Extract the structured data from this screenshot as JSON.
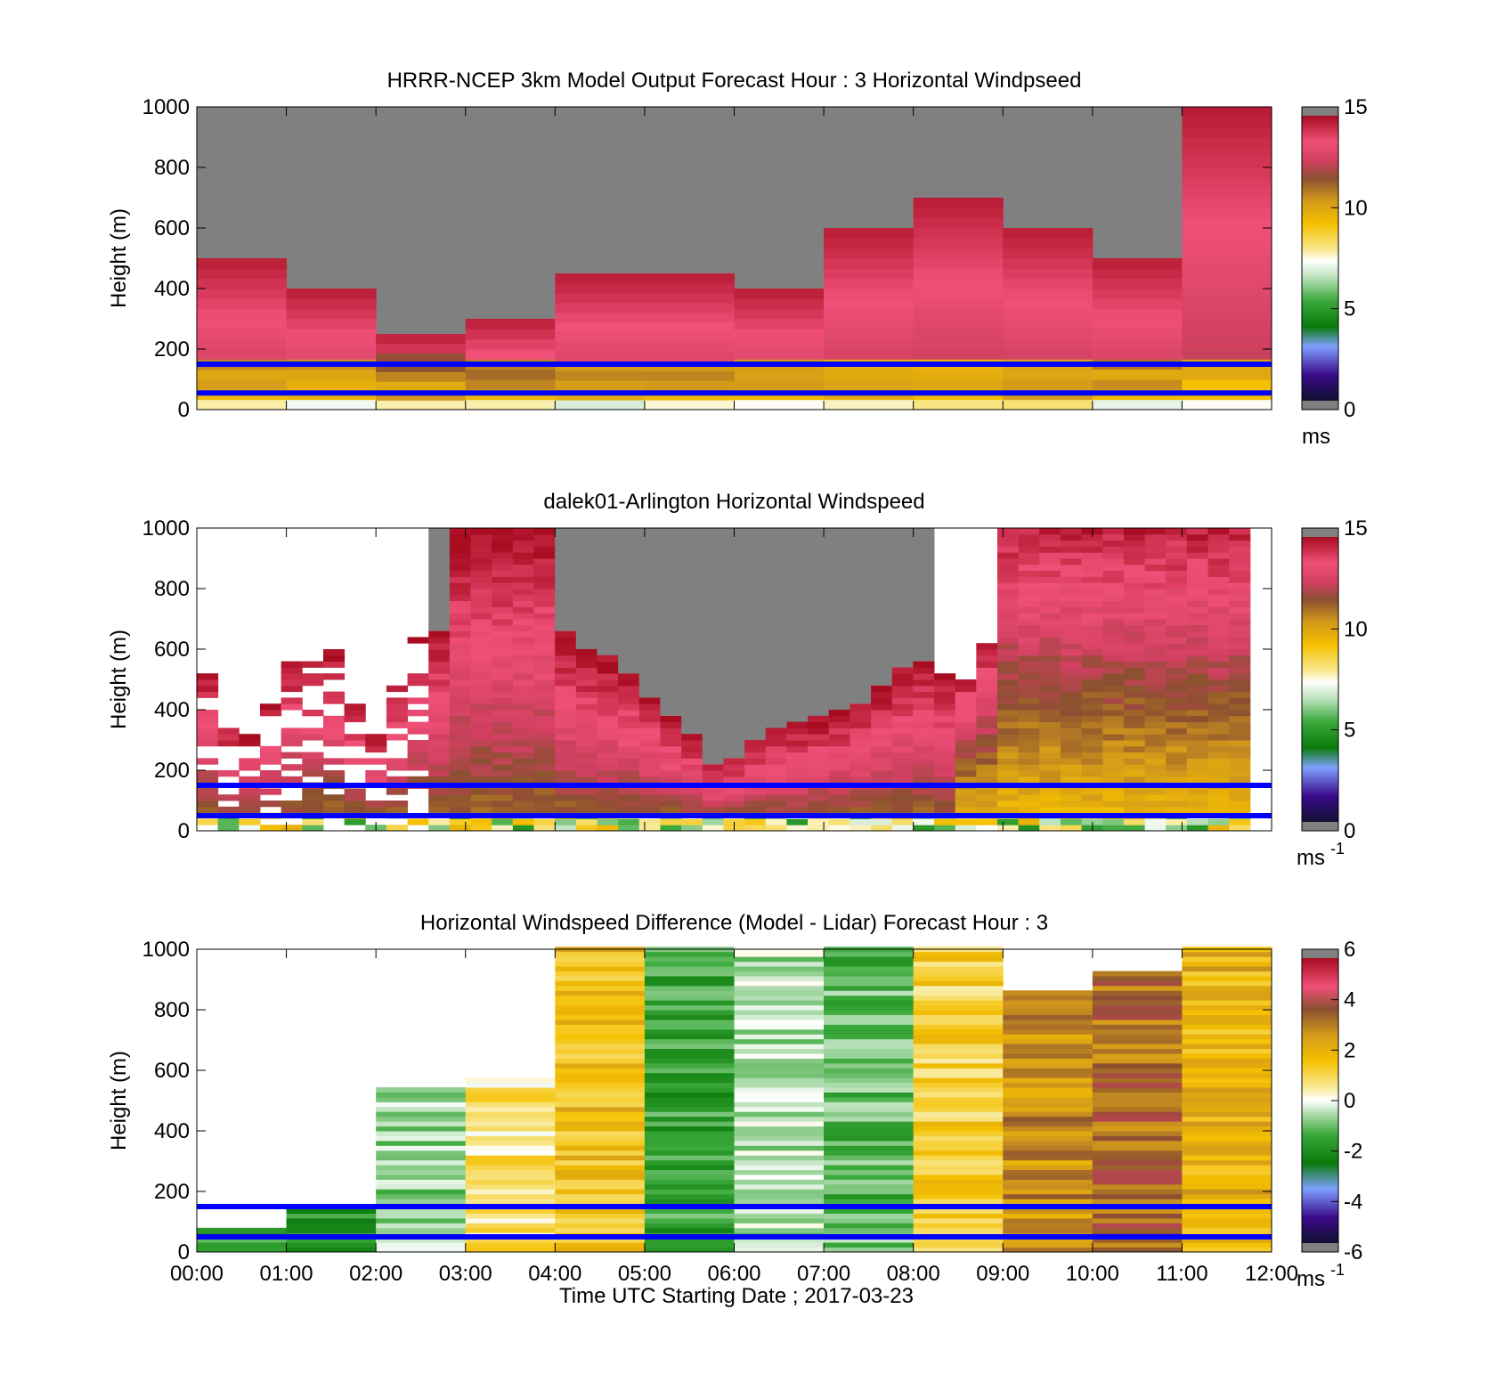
{
  "xlabel": "Time UTC  Starting Date ; 2017-03-23",
  "x_ticks": [
    "00:00",
    "01:00",
    "02:00",
    "03:00",
    "04:00",
    "05:00",
    "06:00",
    "07:00",
    "08:00",
    "09:00",
    "10:00",
    "11:00",
    "12:00"
  ],
  "chart_data": [
    {
      "type": "heatmap",
      "title": "HRRR-NCEP 3km Model Output   Forecast Hour : 3 Horizontal Windpseed",
      "ylabel": "Height (m)",
      "ylim": [
        0,
        1000
      ],
      "y_ticks": [
        "0",
        "200",
        "400",
        "600",
        "800",
        "1000"
      ],
      "x_range_hours": [
        0,
        12
      ],
      "colorbar": {
        "range": [
          0,
          15
        ],
        "ticks": [
          "0",
          "5",
          "10",
          "15"
        ],
        "unit": "ms",
        "unit_sup": ""
      },
      "reference_lines_m": [
        150,
        55
      ],
      "columns": [
        {
          "t0": 0,
          "t1": 1,
          "top_m": 500
        },
        {
          "t0": 1,
          "t1": 2,
          "top_m": 400
        },
        {
          "t0": 2,
          "t1": 3,
          "top_m": 250
        },
        {
          "t0": 3,
          "t1": 4,
          "top_m": 300
        },
        {
          "t0": 4,
          "t1": 5,
          "top_m": 450
        },
        {
          "t0": 5,
          "t1": 6,
          "top_m": 450
        },
        {
          "t0": 6,
          "t1": 7,
          "top_m": 400
        },
        {
          "t0": 7,
          "t1": 8,
          "top_m": 600
        },
        {
          "t0": 8,
          "t1": 9,
          "top_m": 700
        },
        {
          "t0": 9,
          "t1": 10,
          "top_m": 600
        },
        {
          "t0": 10,
          "t1": 11,
          "top_m": 500
        },
        {
          "t0": 11,
          "t1": 12,
          "top_m": 1000
        }
      ]
    },
    {
      "type": "heatmap",
      "title": "dalek01-Arlington  Horizontal Windspeed",
      "ylabel": "Height (m)",
      "ylim": [
        0,
        1000
      ],
      "y_ticks": [
        "0",
        "200",
        "400",
        "600",
        "800",
        "1000"
      ],
      "x_range_hours": [
        0,
        12
      ],
      "colorbar": {
        "range": [
          0,
          15
        ],
        "ticks": [
          "0",
          "5",
          "10",
          "15"
        ],
        "unit": "ms",
        "unit_sup": "-1"
      },
      "reference_lines_m": [
        150,
        50
      ],
      "data_top_m": [
        540,
        350,
        320,
        420,
        560,
        560,
        600,
        420,
        320,
        520,
        630,
        660,
        990,
        1000,
        1000,
        1000,
        1000,
        660,
        590,
        570,
        520,
        440,
        380,
        310,
        220,
        240,
        300,
        330,
        350,
        370,
        390,
        420,
        480,
        540,
        560,
        520,
        500,
        610,
        1000,
        1000,
        1000,
        1000,
        1000,
        1000,
        1000,
        1000,
        1000,
        1000,
        1000,
        1000
      ]
    },
    {
      "type": "heatmap",
      "title": "Horizontal Windspeed Difference (Model - Lidar) Forecast Hour : 3",
      "ylabel": "Height (m)",
      "ylim": [
        0,
        1000
      ],
      "y_ticks": [
        "0",
        "200",
        "400",
        "600",
        "800",
        "1000"
      ],
      "x_range_hours": [
        0,
        12
      ],
      "colorbar": {
        "range": [
          -6,
          6
        ],
        "ticks": [
          "-6",
          "-4",
          "-2",
          "0",
          "2",
          "4",
          "6"
        ],
        "unit": "ms",
        "unit_sup": "-1"
      },
      "reference_lines_m": [
        150,
        50
      ],
      "columns": [
        {
          "t0": 0,
          "t1": 1,
          "top_m": 80,
          "base_diff": -2.0
        },
        {
          "t0": 1,
          "t1": 2,
          "top_m": 150,
          "base_diff": -2.2
        },
        {
          "t0": 2,
          "t1": 3,
          "top_m": 550,
          "base_diff": -1.0
        },
        {
          "t0": 3,
          "t1": 4,
          "top_m": 570,
          "base_diff": 0.5
        },
        {
          "t0": 4,
          "t1": 5,
          "top_m": 1000,
          "base_diff": 1.5
        },
        {
          "t0": 5,
          "t1": 6,
          "top_m": 1000,
          "base_diff": -2.0
        },
        {
          "t0": 6,
          "t1": 7,
          "top_m": 1000,
          "base_diff": -0.8
        },
        {
          "t0": 7,
          "t1": 8,
          "top_m": 1000,
          "base_diff": -1.5
        },
        {
          "t0": 8,
          "t1": 9,
          "top_m": 1000,
          "base_diff": 1.0
        },
        {
          "t0": 9,
          "t1": 10,
          "top_m": 870,
          "base_diff": 2.5
        },
        {
          "t0": 10,
          "t1": 11,
          "top_m": 930,
          "base_diff": 3.0
        },
        {
          "t0": 11,
          "t1": 12,
          "top_m": 1000,
          "base_diff": 1.8
        }
      ]
    }
  ],
  "colors": {
    "missing": "#808080",
    "reference_line": "#0000ff"
  }
}
